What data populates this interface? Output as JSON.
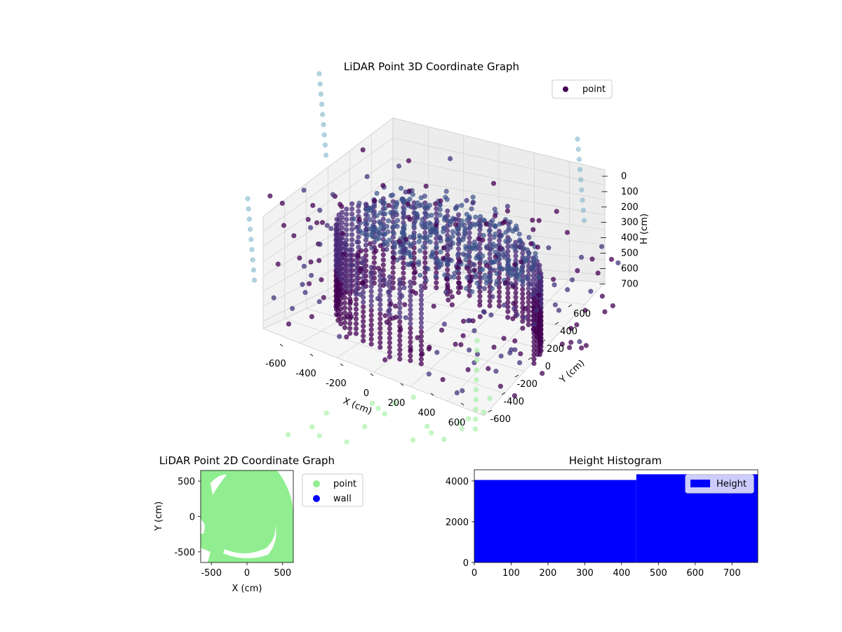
{
  "colors": {
    "point_dark": "#440154",
    "point_mid": "#3b528b",
    "point_cyan": "#7fb6c8",
    "point_green": "#90ee90",
    "wall_blue": "#0000ff",
    "hist_blue": "#0000ff",
    "grid_gray": "#d0d0d0",
    "pane_gray": "#f2f2f2"
  },
  "chart_data": [
    {
      "type": "scatter",
      "title": "LiDAR Point 3D Coordinate Graph",
      "xlabel": "X (cm)",
      "ylabel": "Y (cm)",
      "zlabel": "H (cm)",
      "x_ticks": [
        "-600",
        "-400",
        "-200",
        "0",
        "200",
        "400",
        "600"
      ],
      "y_ticks": [
        "-600",
        "-400",
        "-200",
        "0",
        "200",
        "400",
        "600"
      ],
      "z_ticks": [
        "0",
        "100",
        "200",
        "300",
        "400",
        "500",
        "600",
        "700"
      ],
      "xlim": [
        -700,
        700
      ],
      "ylim": [
        -700,
        700
      ],
      "zlim": [
        0,
        750
      ],
      "z_inverted": true,
      "grid": true,
      "legend": {
        "position": "top-right",
        "entries": [
          "point"
        ]
      },
      "series": [
        {
          "name": "point",
          "description_colormap": "viridis"
        }
      ]
    },
    {
      "type": "scatter",
      "title": "LiDAR Point 2D Coordinate Graph",
      "xlabel": "X (cm)",
      "ylabel": "Y (cm)",
      "x_ticks": [
        "-500",
        "0",
        "500"
      ],
      "y_ticks": [
        "500",
        "0",
        "-500"
      ],
      "xlim": [
        -650,
        650
      ],
      "ylim": [
        -650,
        650
      ],
      "grid": false,
      "legend": {
        "position": "outside-right",
        "entries": [
          "point",
          "wall"
        ]
      },
      "series": [
        {
          "name": "point"
        },
        {
          "name": "wall"
        }
      ]
    },
    {
      "type": "bar",
      "title": "Height Histogram",
      "x_ticks": [
        "0",
        "100",
        "200",
        "300",
        "400",
        "500",
        "600",
        "700"
      ],
      "y_ticks": [
        "0",
        "2000",
        "4000"
      ],
      "xlim": [
        0,
        770
      ],
      "ylim": [
        0,
        4550
      ],
      "grid": false,
      "legend": {
        "position": "top-right",
        "entries": [
          "Height"
        ]
      },
      "series": [
        {
          "name": "Height",
          "bins": [
            [
              0,
              440
            ],
            [
              440,
              770
            ]
          ],
          "values": [
            4050,
            4330
          ]
        }
      ]
    }
  ]
}
